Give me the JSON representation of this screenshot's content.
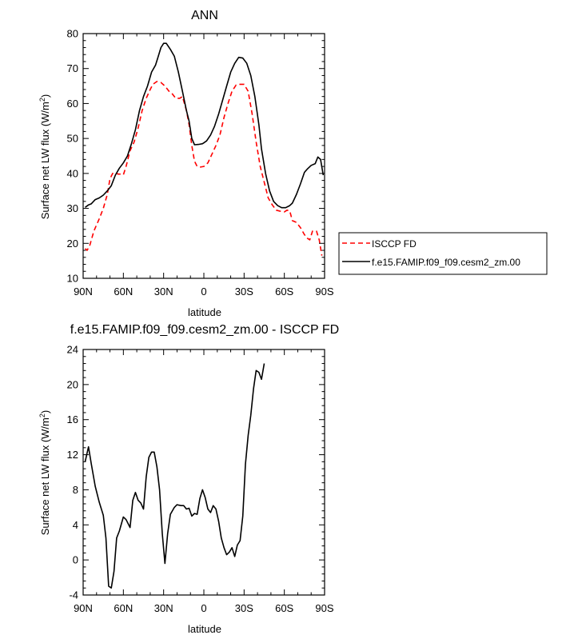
{
  "chart_data": [
    {
      "type": "line",
      "title": "ANN",
      "xlabel": "latitude",
      "ylabel": "Surface net LW flux (W/m²)",
      "ylabel_main": "Surface net LW flux (W/m",
      "ylabel_sup": "2",
      "ylabel_close": ")",
      "xlim": [
        90,
        -90
      ],
      "ylim": [
        10,
        80
      ],
      "xticks": [
        90,
        60,
        30,
        0,
        -30,
        -60,
        -90
      ],
      "xtick_labels": [
        "90N",
        "60N",
        "30N",
        "0",
        "30S",
        "60S",
        "90S"
      ],
      "yticks": [
        10,
        20,
        30,
        40,
        50,
        60,
        70,
        80
      ],
      "ytick_labels": [
        "10",
        "20",
        "30",
        "40",
        "50",
        "60",
        "70",
        "80"
      ],
      "legend": {
        "placement": "right",
        "entries": [
          "ISCCP FD",
          "f.e15.FAMIP.f09_f09.cesm2_zm.00"
        ]
      },
      "series": [
        {
          "name": "ISCCP FD",
          "color": "#ff0000",
          "dash": "dashed",
          "points": [
            [
              88.5,
              18.5
            ],
            [
              87,
              18
            ],
            [
              85,
              19.5
            ],
            [
              82,
              23.5
            ],
            [
              78,
              27
            ],
            [
              75,
              30
            ],
            [
              72,
              34
            ],
            [
              70,
              38.5
            ],
            [
              68,
              40
            ],
            [
              66,
              40.3
            ],
            [
              64,
              39.8
            ],
            [
              62,
              39.8
            ],
            [
              60,
              39.6
            ],
            [
              58,
              42
            ],
            [
              55,
              46.5
            ],
            [
              52,
              49
            ],
            [
              49,
              53
            ],
            [
              46,
              58
            ],
            [
              43,
              61.5
            ],
            [
              40,
              64
            ],
            [
              38,
              65.5
            ],
            [
              35,
              66.3
            ],
            [
              32,
              66
            ],
            [
              29,
              65
            ],
            [
              26,
              63.5
            ],
            [
              24,
              63
            ],
            [
              21,
              61.5
            ],
            [
              18,
              61.5
            ],
            [
              16,
              62
            ],
            [
              13,
              58
            ],
            [
              11,
              54
            ],
            [
              9,
              48
            ],
            [
              7,
              43.5
            ],
            [
              5,
              42
            ],
            [
              3,
              41.8
            ],
            [
              0,
              42
            ],
            [
              -3,
              43
            ],
            [
              -6,
              45.5
            ],
            [
              -9,
              48
            ],
            [
              -12,
              51
            ],
            [
              -15,
              56
            ],
            [
              -18,
              60
            ],
            [
              -21,
              63.5
            ],
            [
              -24,
              65.3
            ],
            [
              -27,
              65.5
            ],
            [
              -30,
              65.5
            ],
            [
              -33,
              63.5
            ],
            [
              -36,
              57
            ],
            [
              -39,
              49
            ],
            [
              -42,
              42
            ],
            [
              -45,
              37.5
            ],
            [
              -48,
              33
            ],
            [
              -51,
              31
            ],
            [
              -54,
              29.5
            ],
            [
              -57,
              29.2
            ],
            [
              -60,
              29
            ],
            [
              -62,
              29.5
            ],
            [
              -64,
              29.3
            ],
            [
              -66,
              26.5
            ],
            [
              -69,
              26
            ],
            [
              -72,
              24.5
            ],
            [
              -75,
              22.5
            ],
            [
              -77,
              21.5
            ],
            [
              -79,
              21
            ],
            [
              -81,
              23.5
            ],
            [
              -84,
              23.5
            ],
            [
              -86,
              21
            ],
            [
              -88,
              16.5
            ]
          ]
        },
        {
          "name": "f.e15.FAMIP.f09_f09.cesm2_zm.00",
          "color": "#000000",
          "dash": "solid",
          "points": [
            [
              88.5,
              30.3
            ],
            [
              86,
              31
            ],
            [
              84,
              31.3
            ],
            [
              81,
              32.5
            ],
            [
              78,
              33
            ],
            [
              75,
              33.8
            ],
            [
              72,
              35
            ],
            [
              69,
              36.5
            ],
            [
              66,
              39.5
            ],
            [
              63,
              41.5
            ],
            [
              60,
              43
            ],
            [
              57,
              45
            ],
            [
              54,
              48.5
            ],
            [
              51,
              52.5
            ],
            [
              48,
              58
            ],
            [
              45,
              62
            ],
            [
              42,
              65
            ],
            [
              39,
              69
            ],
            [
              36,
              71
            ],
            [
              34,
              73.5
            ],
            [
              32,
              76
            ],
            [
              30,
              77.2
            ],
            [
              28,
              77.2
            ],
            [
              25,
              75.5
            ],
            [
              22,
              73.5
            ],
            [
              19,
              69
            ],
            [
              16,
              63.5
            ],
            [
              13,
              58
            ],
            [
              11,
              55
            ],
            [
              9,
              50
            ],
            [
              7,
              48.2
            ],
            [
              4,
              48.3
            ],
            [
              1,
              48.5
            ],
            [
              -2,
              49.3
            ],
            [
              -5,
              51
            ],
            [
              -8,
              53.5
            ],
            [
              -11,
              57
            ],
            [
              -14,
              61
            ],
            [
              -17,
              65
            ],
            [
              -20,
              69
            ],
            [
              -23,
              71.5
            ],
            [
              -26,
              73.2
            ],
            [
              -29,
              73
            ],
            [
              -32,
              71.5
            ],
            [
              -35,
              68
            ],
            [
              -38,
              62
            ],
            [
              -41,
              54
            ],
            [
              -43,
              47
            ],
            [
              -46,
              40
            ],
            [
              -49,
              35
            ],
            [
              -52,
              32
            ],
            [
              -55,
              30.8
            ],
            [
              -58,
              30.2
            ],
            [
              -61,
              30.2
            ],
            [
              -64,
              30.8
            ],
            [
              -66,
              31.5
            ],
            [
              -69,
              34
            ],
            [
              -72,
              37
            ],
            [
              -75,
              40.3
            ],
            [
              -77,
              41.2
            ],
            [
              -80,
              42.3
            ],
            [
              -83,
              42.8
            ],
            [
              -85,
              44.7
            ],
            [
              -87,
              44
            ],
            [
              -89,
              39.5
            ]
          ]
        }
      ]
    },
    {
      "type": "line",
      "title": "f.e15.FAMIP.f09_f09.cesm2_zm.00 - ISCCP FD",
      "xlabel": "latitude",
      "ylabel": "Surface net LW flux (W/m²)",
      "ylabel_main": "Surface net LW flux (W/m",
      "ylabel_sup": "2",
      "ylabel_close": ")",
      "xlim": [
        90,
        -90
      ],
      "ylim": [
        -4,
        24
      ],
      "xticks": [
        90,
        60,
        30,
        0,
        -30,
        -60,
        -90
      ],
      "xtick_labels": [
        "90N",
        "60N",
        "30N",
        "0",
        "30S",
        "60S",
        "90S"
      ],
      "yticks": [
        -4,
        0,
        4,
        8,
        12,
        16,
        20,
        24
      ],
      "ytick_labels": [
        "-4",
        "0",
        "4",
        "8",
        "12",
        "16",
        "20",
        "24"
      ],
      "series": [
        {
          "name": "f.e15.FAMIP.f09_f09.cesm2_zm.00 - ISCCP FD",
          "color": "#000000",
          "dash": "solid",
          "points": [
            [
              88.5,
              11.2
            ],
            [
              86,
              12.9
            ],
            [
              84,
              11
            ],
            [
              81,
              8.4
            ],
            [
              78,
              6.6
            ],
            [
              75,
              5.1
            ],
            [
              73,
              2.5
            ],
            [
              71,
              -3
            ],
            [
              69,
              -3.2
            ],
            [
              67,
              -1.3
            ],
            [
              65,
              2.5
            ],
            [
              63,
              3.3
            ],
            [
              60,
              4.9
            ],
            [
              58,
              4.6
            ],
            [
              55,
              3.7
            ],
            [
              53,
              6.8
            ],
            [
              51,
              7.7
            ],
            [
              49,
              6.8
            ],
            [
              47,
              6.5
            ],
            [
              45,
              5.8
            ],
            [
              43,
              9.5
            ],
            [
              41,
              11.7
            ],
            [
              39,
              12.3
            ],
            [
              37,
              12.3
            ],
            [
              35,
              10.6
            ],
            [
              33,
              8
            ],
            [
              31,
              3
            ],
            [
              29,
              -0.4
            ],
            [
              27,
              3
            ],
            [
              25,
              5.2
            ],
            [
              22,
              6
            ],
            [
              20,
              6.3
            ],
            [
              17,
              6.2
            ],
            [
              15,
              6.2
            ],
            [
              13,
              5.8
            ],
            [
              11,
              5.9
            ],
            [
              9,
              5
            ],
            [
              7,
              5.3
            ],
            [
              5,
              5.2
            ],
            [
              3,
              7
            ],
            [
              1,
              8
            ],
            [
              -1,
              7.1
            ],
            [
              -3,
              5.8
            ],
            [
              -5,
              5.4
            ],
            [
              -7,
              6.2
            ],
            [
              -9,
              5.8
            ],
            [
              -11,
              4.4
            ],
            [
              -13,
              2.5
            ],
            [
              -15,
              1.4
            ],
            [
              -17,
              0.6
            ],
            [
              -19,
              0.9
            ],
            [
              -21,
              1.4
            ],
            [
              -23,
              0.4
            ],
            [
              -25,
              1.7
            ],
            [
              -27,
              2.2
            ],
            [
              -29,
              5
            ],
            [
              -31,
              10.9
            ],
            [
              -33,
              14.2
            ],
            [
              -35,
              16.5
            ],
            [
              -37,
              19.5
            ],
            [
              -39,
              21.6
            ],
            [
              -41,
              21.4
            ],
            [
              -43,
              20.6
            ],
            [
              -45,
              22.4
            ]
          ]
        }
      ]
    }
  ]
}
